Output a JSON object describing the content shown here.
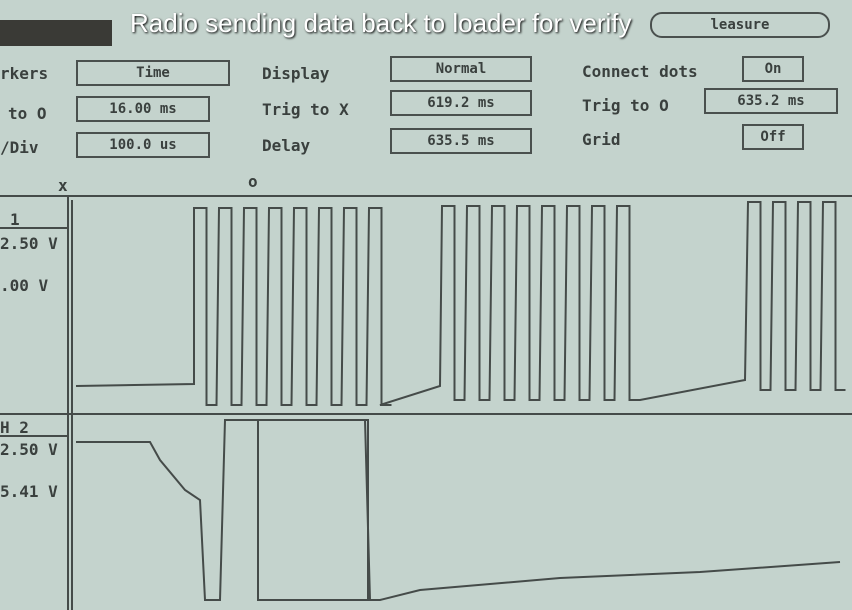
{
  "caption": "Radio sending data back to loader for verify",
  "controls": {
    "markers_label": "rkers",
    "markers_value": "Time",
    "to_o_label": "to O",
    "to_o_value": "16.00 ms",
    "div_label": "/Div",
    "div_value": "100.0 us",
    "display_label": "Display",
    "display_value": "Normal",
    "trig_x_label": "Trig to X",
    "trig_x_value": "619.2 ms",
    "delay_label": "Delay",
    "delay_value": "635.5 ms",
    "connect_label": "Connect dots",
    "connect_value": "On",
    "trig_o_label": "Trig to O",
    "trig_o_value": "635.2 ms",
    "grid_label": "Grid",
    "grid_value": "Off",
    "measure_button": "leasure"
  },
  "markers": {
    "x": "x",
    "o": "o"
  },
  "channel1": {
    "name": "1",
    "upper": "2.50 V",
    "lower": ".00 V"
  },
  "channel2": {
    "name": "H 2",
    "upper": "2.50 V",
    "lower": "5.41 V"
  }
}
